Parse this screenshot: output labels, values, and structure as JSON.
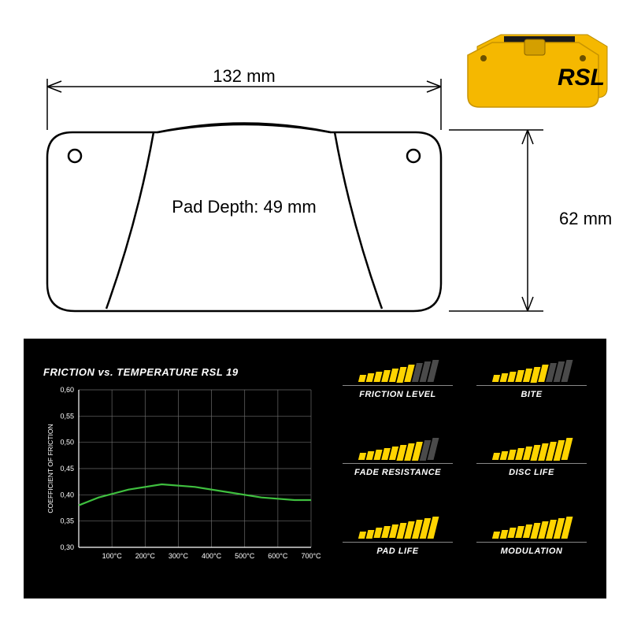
{
  "diagram": {
    "width_label": "132 mm",
    "height_label": "62 mm",
    "pad_depth_label": "Pad Depth: 49 mm",
    "outline_color": "#000000",
    "text_fontsize": 20
  },
  "product": {
    "brand": "RSL",
    "color": "#f5b800",
    "accent": "#000000"
  },
  "chart": {
    "title": "FRICTION vs. TEMPERATURE RSL 19",
    "y_axis_title": "COEFFICIENT OF FRICTION",
    "y_ticks": [
      "0,30",
      "0,35",
      "0,40",
      "0,45",
      "0,50",
      "0,55",
      "0,60"
    ],
    "x_ticks": [
      "100°C",
      "200°C",
      "300°C",
      "400°C",
      "500°C",
      "600°C",
      "700°C"
    ],
    "line_color": "#3fbf3f",
    "grid_color": "#6a6a6a",
    "bg_color": "#000000",
    "line_points": [
      [
        0,
        0.38
      ],
      [
        60,
        0.395
      ],
      [
        150,
        0.41
      ],
      [
        250,
        0.42
      ],
      [
        350,
        0.415
      ],
      [
        450,
        0.405
      ],
      [
        550,
        0.395
      ],
      [
        650,
        0.39
      ],
      [
        700,
        0.39
      ]
    ],
    "x_domain": [
      0,
      700
    ],
    "y_domain": [
      0.3,
      0.6
    ]
  },
  "ratings": {
    "bar_on_color": "#ffd400",
    "bar_off_color": "#4a4a4a",
    "max_bars": 10,
    "items": [
      {
        "label": "FRICTION LEVEL",
        "value": 7
      },
      {
        "label": "BITE",
        "value": 7
      },
      {
        "label": "FADE RESISTANCE",
        "value": 8
      },
      {
        "label": "DISC LIFE",
        "value": 10
      },
      {
        "label": "PAD LIFE",
        "value": 10
      },
      {
        "label": "MODULATION",
        "value": 10
      }
    ]
  }
}
